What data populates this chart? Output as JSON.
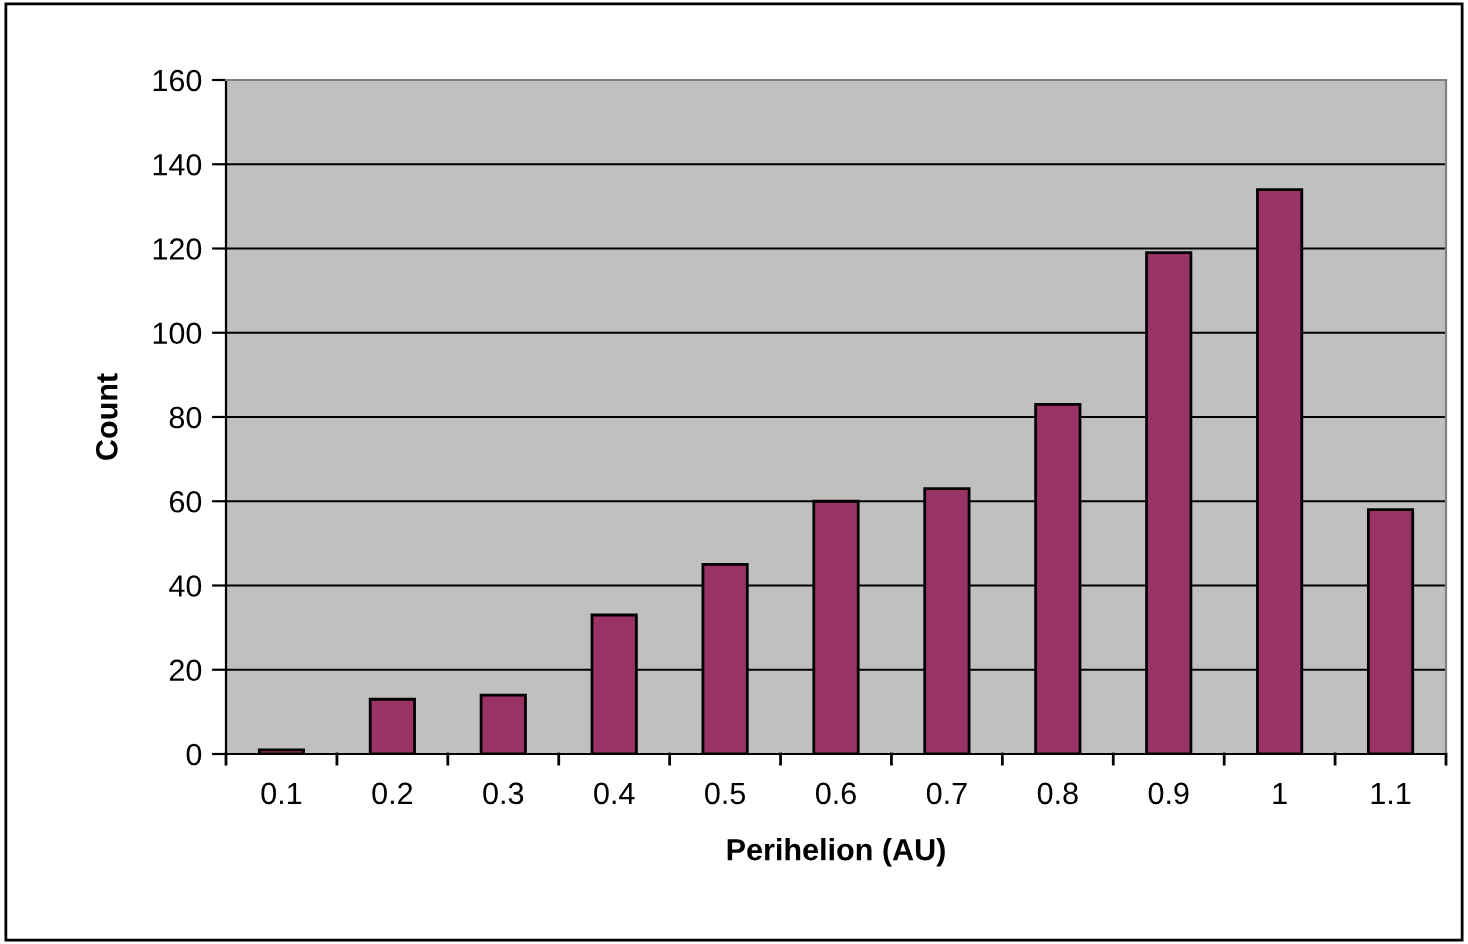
{
  "chart_data": {
    "type": "bar",
    "xlabel": "Perihelion (AU)",
    "ylabel": "Count",
    "categories": [
      "0.1",
      "0.2",
      "0.3",
      "0.4",
      "0.5",
      "0.6",
      "0.7",
      "0.8",
      "0.9",
      "1",
      "1.1"
    ],
    "values": [
      1,
      13,
      14,
      33,
      45,
      60,
      63,
      83,
      119,
      134,
      58
    ],
    "color": "#993366",
    "ylim": [
      0,
      160
    ],
    "yticks": [
      0,
      20,
      40,
      60,
      80,
      100,
      120,
      140,
      160
    ],
    "grid": "y",
    "legend": false
  }
}
